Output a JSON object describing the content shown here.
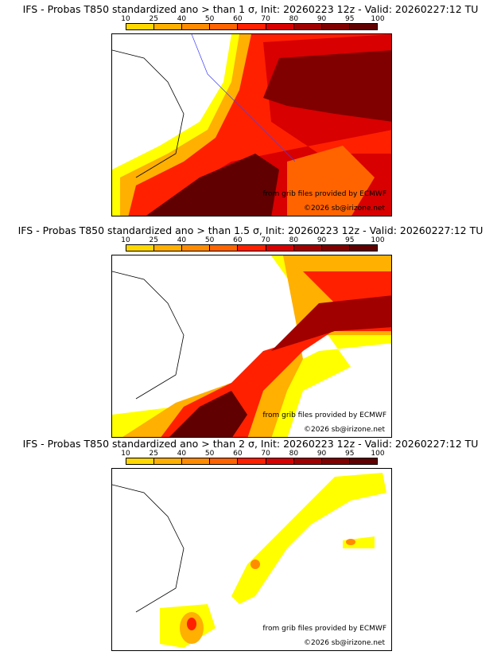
{
  "colorbar": {
    "ticks": [
      "10",
      "25",
      "40",
      "50",
      "60",
      "70",
      "80",
      "90",
      "95",
      "100"
    ],
    "colors": [
      "#ffff00",
      "#ffd800",
      "#ffb000",
      "#ff8c00",
      "#ff6400",
      "#ff2000",
      "#d80000",
      "#a00000",
      "#800000",
      "#600000"
    ]
  },
  "panels": [
    {
      "title": "IFS - Probas T850  standardized ano > than 1 σ, Init: 20260223 12z - Valid: 20260227:12 TU",
      "credit1": "from grib files provided by ECMWF",
      "credit2": "©2026 sb@irizone.net"
    },
    {
      "title": "IFS - Probas T850  standardized ano > than 1.5 σ, Init: 20260223 12z - Valid: 20260227:12 TU",
      "credit1": "from grib files provided by ECMWF",
      "credit2": "©2026 sb@irizone.net"
    },
    {
      "title": "IFS - Probas T850  standardized ano > than 2 σ, Init: 20260223 12z - Valid: 20260227:12 TU",
      "credit1": "from grib files provided by ECMWF",
      "credit2": "©2026 sb@irizone.net"
    }
  ]
}
